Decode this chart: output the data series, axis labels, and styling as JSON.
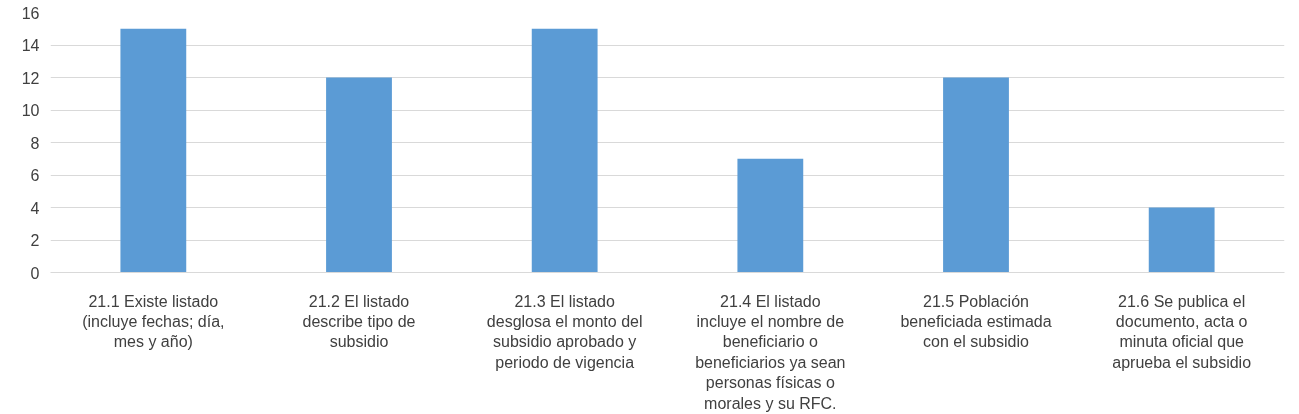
{
  "chart_data": {
    "type": "bar",
    "categories": [
      "21.1 Existe listado (incluye fechas; día, mes y año)",
      "21.2 El listado describe tipo de subsidio",
      "21.3 El listado desglosa el monto del subsidio aprobado y periodo de vigencia",
      "21.4 El listado incluye el nombre de beneficiario o beneficiarios ya sean personas físicas o morales y su RFC.",
      "21.5 Población beneficiada estimada con el subsidio",
      "21.6 Se publica el documento, acta o minuta oficial que aprueba el subsidio"
    ],
    "values": [
      15,
      12,
      15,
      7,
      12,
      4
    ],
    "color": "#5b9bd5",
    "ylim": [
      0,
      16
    ],
    "yticks": [
      0,
      2,
      4,
      6,
      8,
      10,
      12,
      14,
      16
    ],
    "grid": "y"
  }
}
